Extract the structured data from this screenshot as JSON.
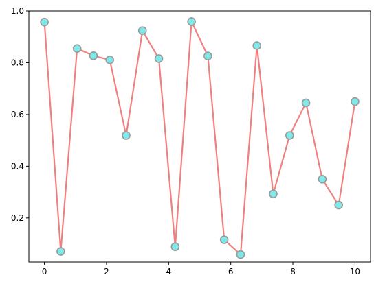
{
  "chart_data": {
    "type": "line",
    "title": "",
    "xlabel": "",
    "ylabel": "",
    "xlim": [
      -0.5,
      10.5
    ],
    "ylim": [
      0.03,
      1.0
    ],
    "x_ticks": [
      0,
      2,
      4,
      6,
      8,
      10
    ],
    "x_tick_labels": [
      "0",
      "2",
      "4",
      "6",
      "8",
      "10"
    ],
    "y_ticks": [
      0.2,
      0.4,
      0.6,
      0.8,
      1.0
    ],
    "y_tick_labels": [
      "0.2",
      "0.4",
      "0.6",
      "0.8",
      "1.0"
    ],
    "grid": false,
    "legend": "none",
    "series": [
      {
        "line_color": "#f08080",
        "marker_face_color": "#7fe8e8",
        "marker_edge_color": "#999999",
        "marker": "circle",
        "x": [
          0,
          0.526,
          1.053,
          1.579,
          2.105,
          2.632,
          3.158,
          3.684,
          4.211,
          4.737,
          5.263,
          5.789,
          6.316,
          6.842,
          7.368,
          7.895,
          8.421,
          8.947,
          9.474,
          10.0
        ],
        "y": [
          0.957,
          0.071,
          0.855,
          0.827,
          0.811,
          0.519,
          0.924,
          0.816,
          0.089,
          0.959,
          0.826,
          0.116,
          0.059,
          0.866,
          0.293,
          0.519,
          0.645,
          0.35,
          0.25,
          0.65
        ]
      }
    ]
  }
}
